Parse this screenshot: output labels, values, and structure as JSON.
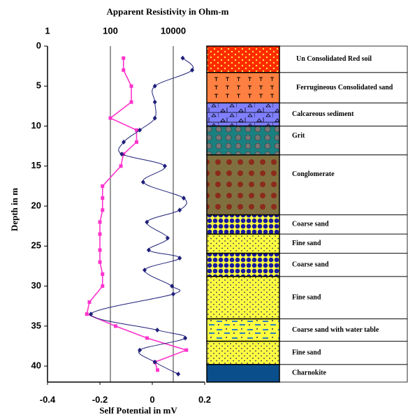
{
  "chart_data": {
    "type": "well-log",
    "title": "Apparent Resistivity in Ohm-m",
    "xlabel": "Self Potential in mV",
    "ylabel": "Depth in m",
    "xlim": [
      -0.4,
      0.2
    ],
    "xticks": [
      -0.4,
      -0.2,
      0,
      0.2
    ],
    "x2lim": [
      1,
      100000
    ],
    "x2ticks": [
      1,
      100,
      10000
    ],
    "x2scale": "log",
    "ylim": [
      0,
      42
    ],
    "yticks": [
      0,
      5,
      10,
      15,
      20,
      25,
      30,
      35,
      40
    ],
    "yinverted": true,
    "series": [
      {
        "color": "#ff33cc",
        "marker": "square",
        "axis": "x",
        "depth": [
          1.5,
          3,
          5,
          7,
          9,
          10.5,
          12,
          13.5,
          15,
          17.5,
          19,
          20.5,
          22,
          23.5,
          25.5,
          27,
          28.5,
          30,
          32,
          33.5,
          35,
          36.5,
          38,
          39.5,
          40.5
        ],
        "values": [
          -0.11,
          -0.11,
          -0.08,
          -0.08,
          -0.16,
          -0.06,
          -0.06,
          -0.11,
          -0.12,
          -0.19,
          -0.19,
          -0.19,
          -0.2,
          -0.2,
          -0.2,
          -0.2,
          -0.19,
          -0.19,
          -0.24,
          -0.25,
          -0.14,
          -0.02,
          0.13,
          0.01,
          0.02
        ]
      },
      {
        "color": "#1f1f7a",
        "marker": "diamond",
        "axis": "x2",
        "depth": [
          1.5,
          3,
          5,
          7,
          9,
          10.5,
          12,
          13.5,
          15,
          17,
          19,
          20.5,
          22,
          24,
          25.5,
          26.5,
          28,
          30,
          31,
          33.5,
          35.5,
          36.5,
          38,
          39.5,
          41
        ],
        "values": [
          20000,
          40000,
          2600,
          2600,
          2600,
          860,
          265,
          230,
          5400,
          1100,
          21500,
          16000,
          1450,
          6600,
          1660,
          16000,
          1230,
          9100,
          10000,
          24,
          3100,
          24000,
          860,
          2600,
          14400
        ]
      }
    ],
    "layers": [
      {
        "label": "Un Consolidated Red soil",
        "top": 0,
        "bottom": 3.3
      },
      {
        "label": "Ferrugineous Consolidated sand",
        "top": 3.3,
        "bottom": 7.1
      },
      {
        "label": "Calcareous sediment",
        "top": 7.1,
        "bottom": 10
      },
      {
        "label": "Grit",
        "top": 10,
        "bottom": 13.6
      },
      {
        "label": "Conglomerate",
        "top": 13.6,
        "bottom": 21.1
      },
      {
        "label": "Coarse sand",
        "top": 21.1,
        "bottom": 23.5
      },
      {
        "label": "Fine sand",
        "top": 23.5,
        "bottom": 25.9
      },
      {
        "label": "Coarse sand",
        "top": 25.9,
        "bottom": 28.8
      },
      {
        "label": "Fine sand",
        "top": 28.8,
        "bottom": 34.1
      },
      {
        "label": "Coarse sand   with water table",
        "top": 34.1,
        "bottom": 36.9
      },
      {
        "label": "Fine sand",
        "top": 36.9,
        "bottom": 39.8
      },
      {
        "label": "Charnokite",
        "top": 39.8,
        "bottom": 42
      }
    ]
  }
}
